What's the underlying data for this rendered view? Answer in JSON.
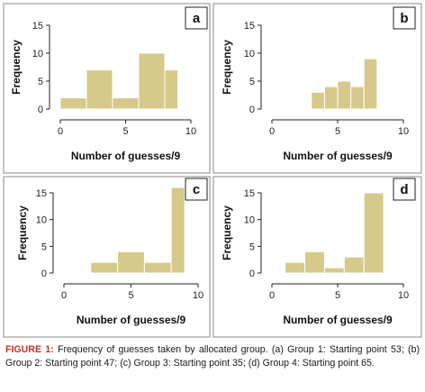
{
  "colors": {
    "bar": "#d6c98a",
    "frame": "#8a8a8a",
    "caption_label": "#c0322b"
  },
  "chart_data": [
    {
      "type": "bar",
      "panel_label": "a",
      "bins": [
        [
          0,
          2
        ],
        [
          2,
          4
        ],
        [
          4,
          6
        ],
        [
          6,
          8
        ],
        [
          8,
          9
        ]
      ],
      "values": [
        2,
        7,
        2,
        10,
        7
      ],
      "xlim": [
        0,
        10
      ],
      "ylim": [
        0,
        15
      ],
      "xticks": [
        "0",
        "5",
        "10"
      ],
      "yticks": [
        "0",
        "5",
        "10",
        "15"
      ],
      "xlabel": "Number of guesses/9",
      "ylabel": "Frequency"
    },
    {
      "type": "bar",
      "panel_label": "b",
      "bins": [
        [
          3,
          4
        ],
        [
          4,
          5
        ],
        [
          5,
          6
        ],
        [
          6,
          7
        ],
        [
          7,
          8
        ]
      ],
      "values": [
        3,
        4,
        5,
        4,
        9
      ],
      "xlim": [
        0,
        10
      ],
      "ylim": [
        0,
        15
      ],
      "xticks": [
        "0",
        "5",
        "10"
      ],
      "yticks": [
        "0",
        "5",
        "10",
        "15"
      ],
      "xlabel": "Number of guesses/9",
      "ylabel": "Frequency"
    },
    {
      "type": "bar",
      "panel_label": "c",
      "bins": [
        [
          2,
          4
        ],
        [
          4,
          6
        ],
        [
          6,
          8
        ],
        [
          8,
          9
        ]
      ],
      "values": [
        2,
        4,
        2,
        16
      ],
      "xlim": [
        0,
        10
      ],
      "ylim": [
        0,
        15
      ],
      "xticks": [
        "0",
        "5",
        "10"
      ],
      "yticks": [
        "0",
        "5",
        "10",
        "15"
      ],
      "xlabel": "Number of guesses/9",
      "ylabel": "Frequency"
    },
    {
      "type": "bar",
      "panel_label": "d",
      "bins": [
        [
          1,
          2.5
        ],
        [
          2.5,
          4
        ],
        [
          4,
          5.5
        ],
        [
          5.5,
          7
        ],
        [
          7,
          8.5
        ]
      ],
      "values": [
        2,
        4,
        1,
        3,
        15
      ],
      "xlim": [
        0,
        10
      ],
      "ylim": [
        0,
        15
      ],
      "xticks": [
        "0",
        "5",
        "10"
      ],
      "yticks": [
        "0",
        "5",
        "10",
        "15"
      ],
      "xlabel": "Number of guesses/9",
      "ylabel": "Frequency"
    }
  ],
  "caption": {
    "label": "FIGURE 1:",
    "text": " Frequency of guesses taken by allocated group. (a) Group 1: Starting point 53; (b) Group 2: Starting point 47; (c) Group 3: Starting point 35; (d) Group 4: Starting point 65."
  }
}
